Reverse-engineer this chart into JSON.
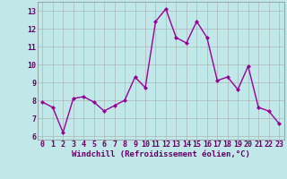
{
  "x": [
    0,
    1,
    2,
    3,
    4,
    5,
    6,
    7,
    8,
    9,
    10,
    11,
    12,
    13,
    14,
    15,
    16,
    17,
    18,
    19,
    20,
    21,
    22,
    23
  ],
  "y": [
    7.9,
    7.6,
    6.2,
    8.1,
    8.2,
    7.9,
    7.4,
    7.7,
    8.0,
    9.3,
    8.7,
    12.4,
    13.1,
    11.5,
    11.2,
    12.4,
    11.5,
    9.1,
    9.3,
    8.6,
    9.9,
    7.6,
    7.4,
    6.7
  ],
  "line_color": "#990099",
  "marker": "D",
  "marker_size": 2.0,
  "xlabel": "Windchill (Refroidissement éolien,°C)",
  "xlim": [
    -0.5,
    23.5
  ],
  "ylim": [
    5.8,
    13.5
  ],
  "yticks": [
    6,
    7,
    8,
    9,
    10,
    11,
    12,
    13
  ],
  "xticks": [
    0,
    1,
    2,
    3,
    4,
    5,
    6,
    7,
    8,
    9,
    10,
    11,
    12,
    13,
    14,
    15,
    16,
    17,
    18,
    19,
    20,
    21,
    22,
    23
  ],
  "grid_color": "#aaaaaa",
  "bg_color": "#c0e8e8",
  "line_width": 1.0,
  "xlabel_fontsize": 6.5,
  "tick_fontsize": 6.0,
  "tick_color": "#660066",
  "spine_color": "#888888"
}
